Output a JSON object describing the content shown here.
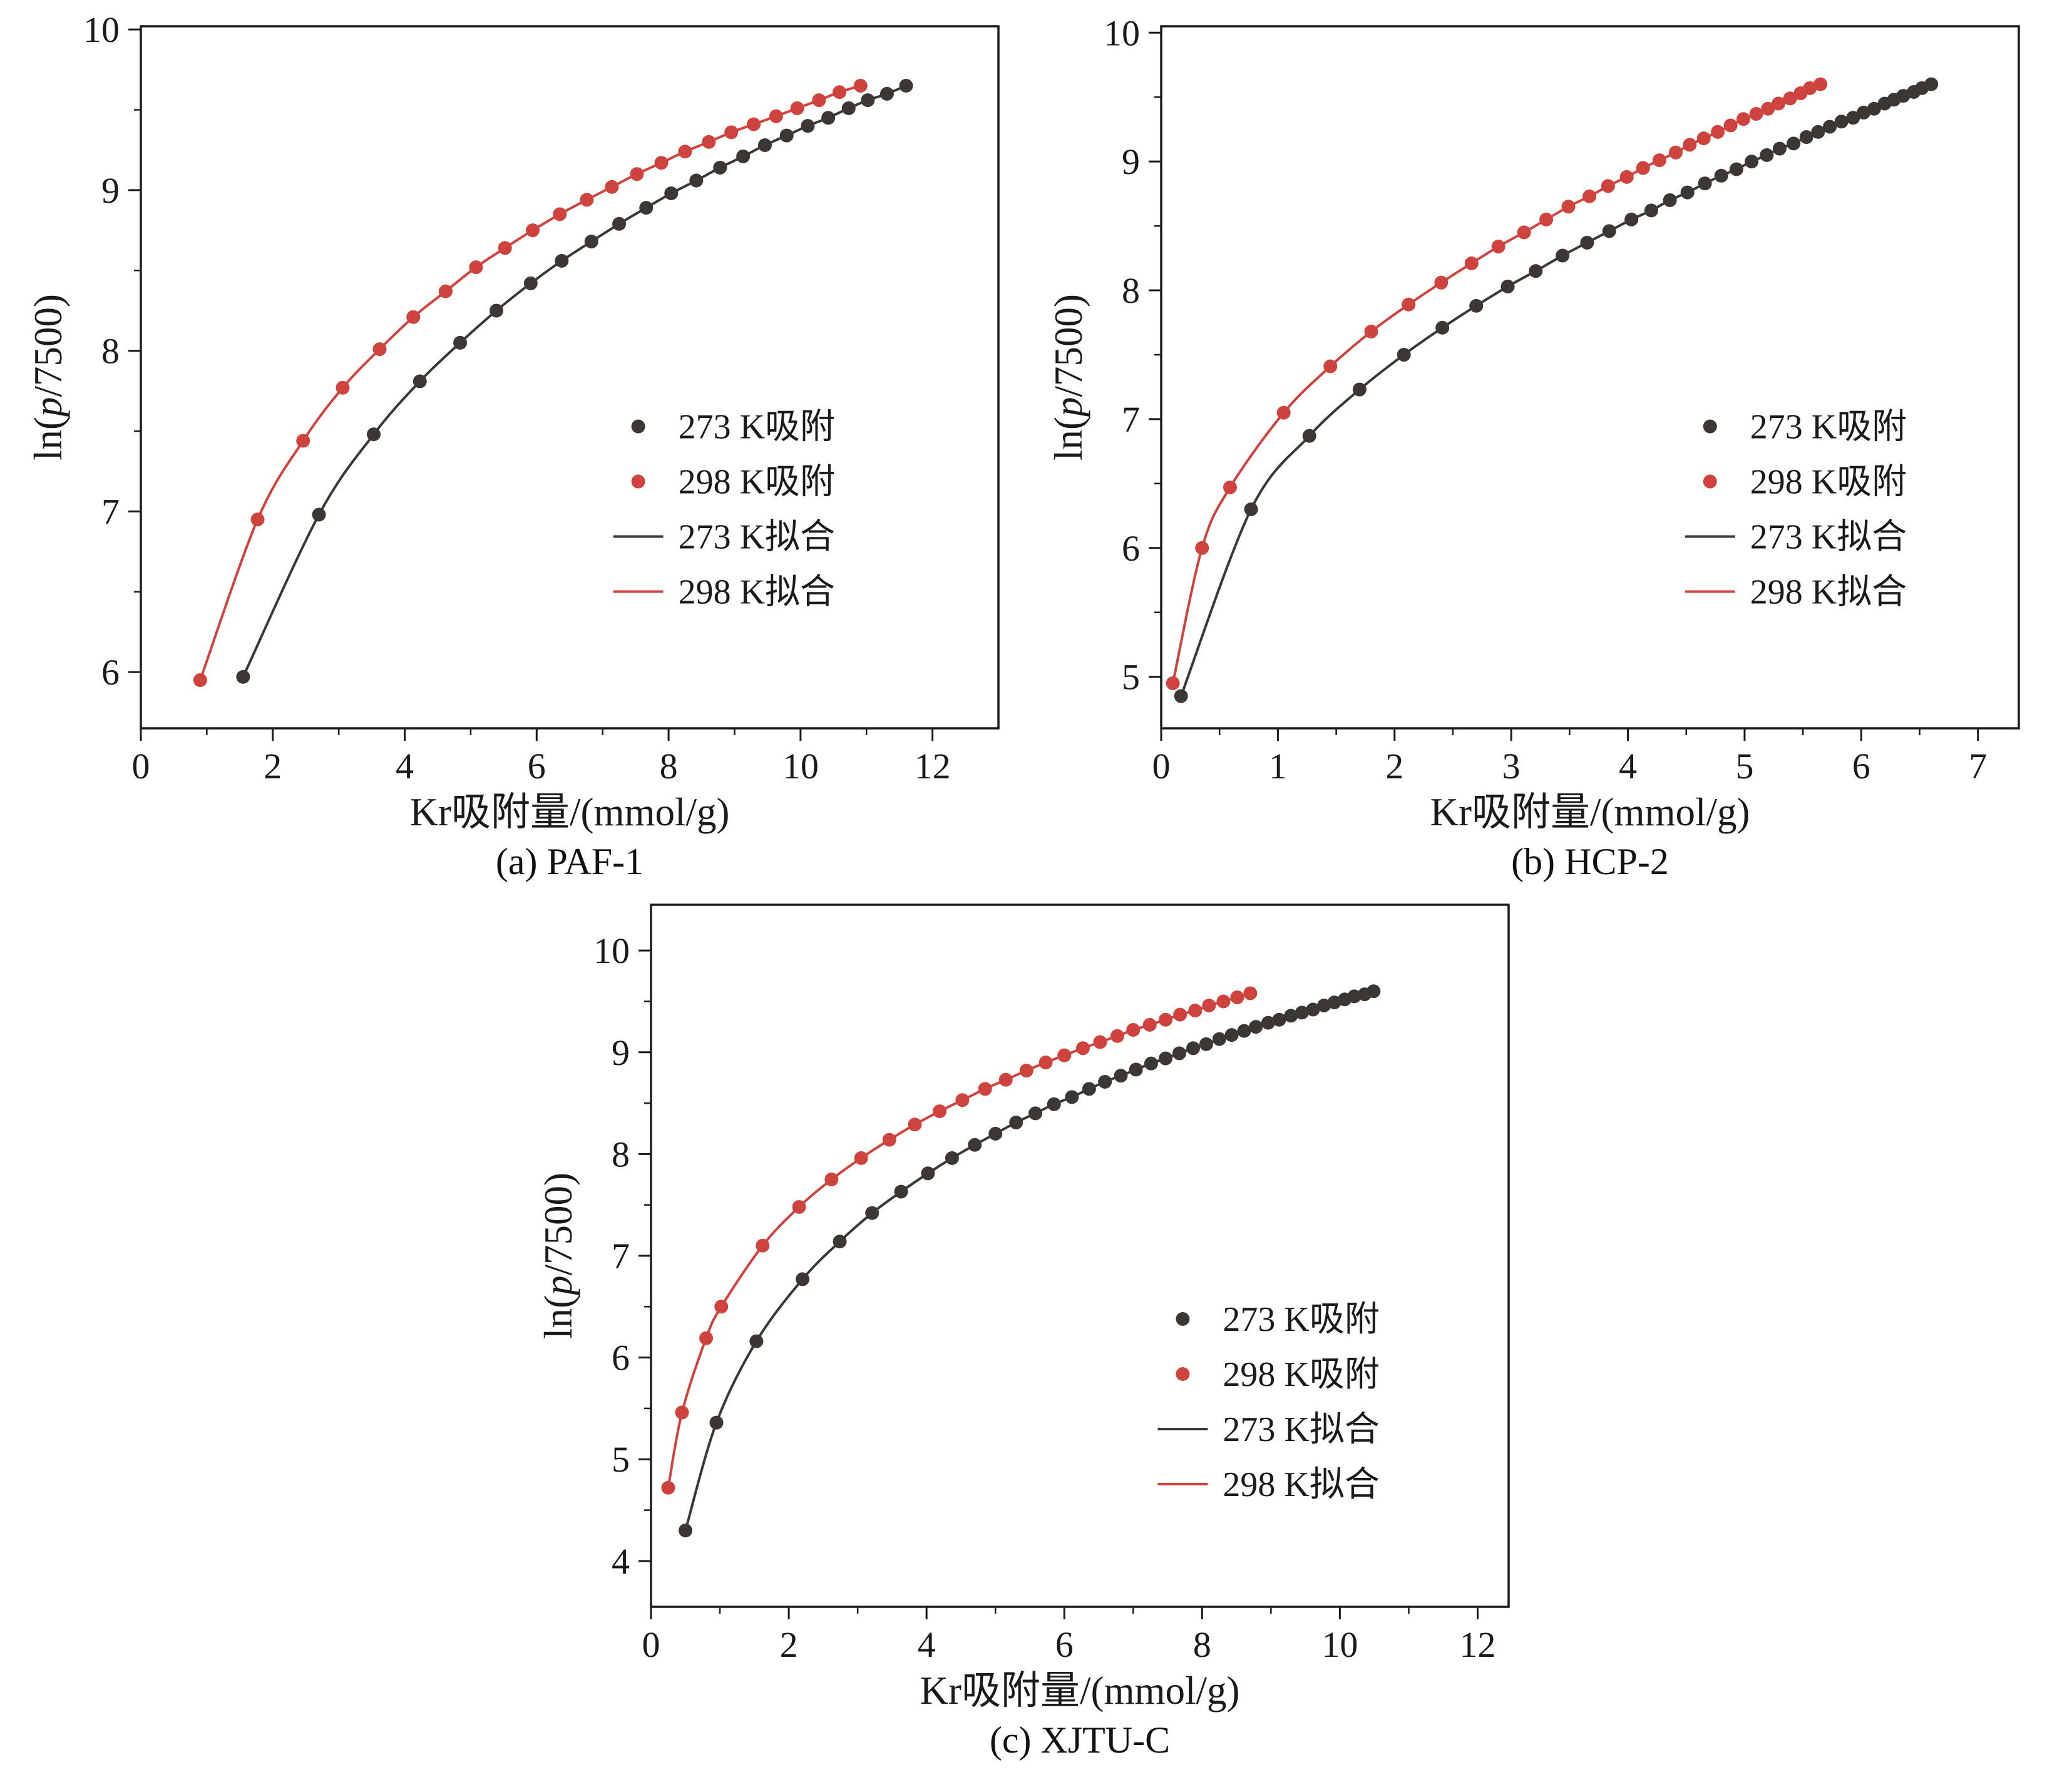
{
  "page": {
    "background": "#ffffff"
  },
  "colors": {
    "273": "#3b3735",
    "298": "#cf433e",
    "axis": "#1a1a1a"
  },
  "legend": [
    {
      "marker": "dot",
      "key": "273",
      "label": "273 K吸附"
    },
    {
      "marker": "dot",
      "key": "298",
      "label": "298 K吸附"
    },
    {
      "marker": "line",
      "key": "273",
      "label": "273 K拟合"
    },
    {
      "marker": "line",
      "key": "298",
      "label": "298 K拟合"
    }
  ],
  "chart_data": [
    {
      "id": "a",
      "type": "scatter",
      "caption": "(a) PAF-1",
      "xlabel": "Kr吸附量/(mmol/g)",
      "ylabel_parts": [
        {
          "t": "ln(",
          "i": false
        },
        {
          "t": "p",
          "i": true
        },
        {
          "t": "/7500)",
          "i": false
        }
      ],
      "xlim": [
        0,
        13
      ],
      "ylim": [
        5.65,
        10.02
      ],
      "xticks": [
        0,
        2,
        4,
        6,
        8,
        10,
        12
      ],
      "yticks": [
        6,
        7,
        8,
        9,
        10
      ],
      "xminor": 1,
      "yminor": 0.5,
      "legend_frac": [
        0.58,
        0.57
      ],
      "series": [
        {
          "key": "273",
          "name": "273 K吸附",
          "points": [
            [
              1.55,
              5.97
            ],
            [
              2.7,
              6.98
            ],
            [
              3.53,
              7.48
            ],
            [
              4.23,
              7.81
            ],
            [
              4.84,
              8.05
            ],
            [
              5.39,
              8.25
            ],
            [
              5.91,
              8.42
            ],
            [
              6.38,
              8.56
            ],
            [
              6.83,
              8.68
            ],
            [
              7.25,
              8.79
            ],
            [
              7.66,
              8.89
            ],
            [
              8.04,
              8.98
            ],
            [
              8.42,
              9.06
            ],
            [
              8.78,
              9.14
            ],
            [
              9.13,
              9.21
            ],
            [
              9.46,
              9.28
            ],
            [
              9.79,
              9.34
            ],
            [
              10.11,
              9.4
            ],
            [
              10.42,
              9.45
            ],
            [
              10.73,
              9.51
            ],
            [
              11.02,
              9.56
            ],
            [
              11.31,
              9.6
            ],
            [
              11.6,
              9.65
            ]
          ]
        },
        {
          "key": "298",
          "name": "298 K吸附",
          "points": [
            [
              0.9,
              5.95
            ],
            [
              1.77,
              6.95
            ],
            [
              2.46,
              7.44
            ],
            [
              3.06,
              7.77
            ],
            [
              3.62,
              8.01
            ],
            [
              4.13,
              8.21
            ],
            [
              4.62,
              8.37
            ],
            [
              5.08,
              8.52
            ],
            [
              5.52,
              8.64
            ],
            [
              5.94,
              8.75
            ],
            [
              6.35,
              8.85
            ],
            [
              6.76,
              8.94
            ],
            [
              7.14,
              9.02
            ],
            [
              7.52,
              9.1
            ],
            [
              7.89,
              9.17
            ],
            [
              8.25,
              9.24
            ],
            [
              8.61,
              9.3
            ],
            [
              8.95,
              9.36
            ],
            [
              9.29,
              9.41
            ],
            [
              9.63,
              9.46
            ],
            [
              9.95,
              9.51
            ],
            [
              10.28,
              9.56
            ],
            [
              10.59,
              9.61
            ],
            [
              10.91,
              9.65
            ]
          ]
        }
      ]
    },
    {
      "id": "b",
      "type": "scatter",
      "caption": "(b) HCP-2",
      "xlabel": "Kr吸附量/(mmol/g)",
      "ylabel_parts": [
        {
          "t": "ln(",
          "i": false
        },
        {
          "t": "p",
          "i": true
        },
        {
          "t": "/7500)",
          "i": false
        }
      ],
      "xlim": [
        0,
        7.35
      ],
      "ylim": [
        4.6,
        10.05
      ],
      "xticks": [
        0,
        1,
        2,
        3,
        4,
        5,
        6,
        7
      ],
      "yticks": [
        5,
        6,
        7,
        8,
        9,
        10
      ],
      "xminor": 0.5,
      "yminor": 0.5,
      "legend_frac": [
        0.64,
        0.57
      ],
      "series": [
        {
          "key": "273",
          "name": "273 K吸附",
          "points": [
            [
              0.17,
              4.85
            ],
            [
              0.77,
              6.3
            ],
            [
              1.27,
              6.87
            ],
            [
              1.7,
              7.23
            ],
            [
              2.08,
              7.5
            ],
            [
              2.41,
              7.71
            ],
            [
              2.7,
              7.88
            ],
            [
              2.97,
              8.03
            ],
            [
              3.21,
              8.15
            ],
            [
              3.44,
              8.27
            ],
            [
              3.65,
              8.37
            ],
            [
              3.84,
              8.46
            ],
            [
              4.03,
              8.55
            ],
            [
              4.2,
              8.62
            ],
            [
              4.36,
              8.7
            ],
            [
              4.51,
              8.76
            ],
            [
              4.66,
              8.83
            ],
            [
              4.8,
              8.89
            ],
            [
              4.93,
              8.94
            ],
            [
              5.06,
              9.0
            ],
            [
              5.19,
              9.05
            ],
            [
              5.3,
              9.1
            ],
            [
              5.42,
              9.14
            ],
            [
              5.53,
              9.19
            ],
            [
              5.63,
              9.23
            ],
            [
              5.73,
              9.27
            ],
            [
              5.83,
              9.31
            ],
            [
              5.93,
              9.34
            ],
            [
              6.02,
              9.38
            ],
            [
              6.11,
              9.41
            ],
            [
              6.2,
              9.45
            ],
            [
              6.28,
              9.48
            ],
            [
              6.36,
              9.51
            ],
            [
              6.45,
              9.54
            ],
            [
              6.52,
              9.57
            ],
            [
              6.6,
              9.6
            ]
          ]
        },
        {
          "key": "298",
          "name": "298 K吸附",
          "points": [
            [
              0.1,
              4.95
            ],
            [
              0.35,
              6.0
            ],
            [
              0.59,
              6.47
            ],
            [
              1.05,
              7.05
            ],
            [
              1.45,
              7.41
            ],
            [
              1.8,
              7.68
            ],
            [
              2.12,
              7.89
            ],
            [
              2.4,
              8.06
            ],
            [
              2.66,
              8.21
            ],
            [
              2.89,
              8.34
            ],
            [
              3.11,
              8.45
            ],
            [
              3.3,
              8.55
            ],
            [
              3.49,
              8.65
            ],
            [
              3.67,
              8.73
            ],
            [
              3.83,
              8.81
            ],
            [
              3.99,
              8.88
            ],
            [
              4.13,
              8.95
            ],
            [
              4.27,
              9.01
            ],
            [
              4.41,
              9.07
            ],
            [
              4.53,
              9.13
            ],
            [
              4.65,
              9.18
            ],
            [
              4.77,
              9.23
            ],
            [
              4.88,
              9.28
            ],
            [
              4.99,
              9.33
            ],
            [
              5.1,
              9.37
            ],
            [
              5.2,
              9.41
            ],
            [
              5.29,
              9.45
            ],
            [
              5.39,
              9.49
            ],
            [
              5.48,
              9.53
            ],
            [
              5.56,
              9.57
            ],
            [
              5.65,
              9.6
            ]
          ]
        }
      ]
    },
    {
      "id": "c",
      "type": "scatter",
      "caption": "(c) XJTU-C",
      "xlabel": "Kr吸附量/(mmol/g)",
      "ylabel_parts": [
        {
          "t": "ln(",
          "i": false
        },
        {
          "t": "p",
          "i": true
        },
        {
          "t": "/7500)",
          "i": false
        }
      ],
      "xlim": [
        0,
        12.45
      ],
      "ylim": [
        3.55,
        10.45
      ],
      "xticks": [
        0,
        2,
        4,
        6,
        8,
        10,
        12
      ],
      "yticks": [
        4,
        5,
        6,
        7,
        8,
        9,
        10
      ],
      "xminor": 1,
      "yminor": 0.5,
      "legend_frac": [
        0.62,
        0.59
      ],
      "series": [
        {
          "key": "273",
          "name": "273 K吸附",
          "points": [
            [
              0.5,
              4.3
            ],
            [
              0.95,
              5.36
            ],
            [
              1.53,
              6.16
            ],
            [
              2.2,
              6.77
            ],
            [
              2.74,
              7.14
            ],
            [
              3.21,
              7.42
            ],
            [
              3.63,
              7.63
            ],
            [
              4.02,
              7.81
            ],
            [
              4.37,
              7.96
            ],
            [
              4.7,
              8.09
            ],
            [
              5.0,
              8.2
            ],
            [
              5.3,
              8.31
            ],
            [
              5.58,
              8.4
            ],
            [
              5.85,
              8.49
            ],
            [
              6.11,
              8.56
            ],
            [
              6.36,
              8.64
            ],
            [
              6.59,
              8.71
            ],
            [
              6.82,
              8.77
            ],
            [
              7.04,
              8.83
            ],
            [
              7.26,
              8.89
            ],
            [
              7.47,
              8.94
            ],
            [
              7.67,
              8.99
            ],
            [
              7.87,
              9.04
            ],
            [
              8.06,
              9.08
            ],
            [
              8.25,
              9.13
            ],
            [
              8.43,
              9.17
            ],
            [
              8.61,
              9.21
            ],
            [
              8.78,
              9.25
            ],
            [
              8.96,
              9.29
            ],
            [
              9.12,
              9.32
            ],
            [
              9.29,
              9.36
            ],
            [
              9.45,
              9.39
            ],
            [
              9.61,
              9.42
            ],
            [
              9.77,
              9.46
            ],
            [
              9.92,
              9.49
            ],
            [
              10.07,
              9.52
            ],
            [
              10.21,
              9.55
            ],
            [
              10.36,
              9.57
            ],
            [
              10.49,
              9.6
            ]
          ]
        },
        {
          "key": "298",
          "name": "298 K吸附",
          "points": [
            [
              0.25,
              4.72
            ],
            [
              0.45,
              5.46
            ],
            [
              0.8,
              6.19
            ],
            [
              1.02,
              6.5
            ],
            [
              1.62,
              7.1
            ],
            [
              2.15,
              7.48
            ],
            [
              2.62,
              7.75
            ],
            [
              3.05,
              7.96
            ],
            [
              3.46,
              8.14
            ],
            [
              3.83,
              8.29
            ],
            [
              4.19,
              8.42
            ],
            [
              4.52,
              8.53
            ],
            [
              4.85,
              8.64
            ],
            [
              5.15,
              8.73
            ],
            [
              5.45,
              8.82
            ],
            [
              5.73,
              8.9
            ],
            [
              6.0,
              8.97
            ],
            [
              6.27,
              9.04
            ],
            [
              6.52,
              9.1
            ],
            [
              6.77,
              9.16
            ],
            [
              7.0,
              9.22
            ],
            [
              7.24,
              9.27
            ],
            [
              7.47,
              9.32
            ],
            [
              7.68,
              9.37
            ],
            [
              7.9,
              9.41
            ],
            [
              8.1,
              9.46
            ],
            [
              8.31,
              9.5
            ],
            [
              8.51,
              9.54
            ],
            [
              8.7,
              9.58
            ]
          ]
        }
      ]
    }
  ]
}
